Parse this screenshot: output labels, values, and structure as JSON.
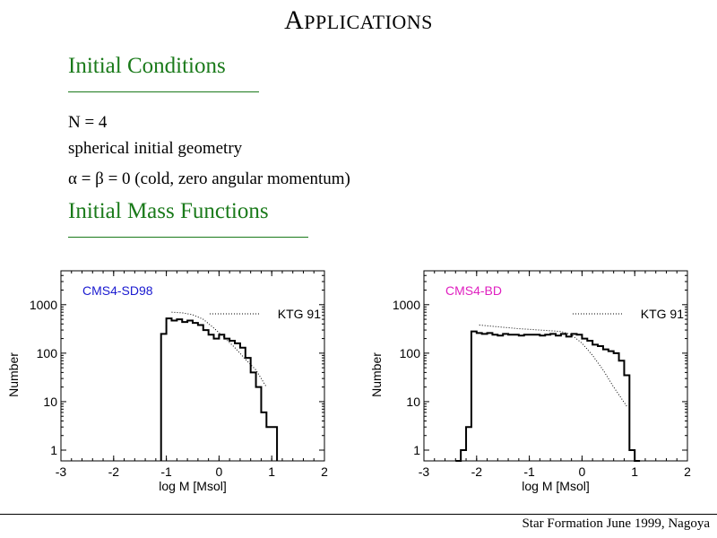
{
  "slide": {
    "title_first": "A",
    "title_rest": "PPLICATIONS",
    "section1": "Initial Conditions",
    "line1": "N = 4",
    "line2": "spherical initial geometry",
    "line3": "α = β = 0 (cold, zero angular momentum)",
    "section2": "Initial Mass Functions",
    "footer": "Star Formation June 1999, Nagoya"
  },
  "chart_data": [
    {
      "type": "line",
      "title": "CMS4-SD98",
      "title_color": "#1a1ad0",
      "xlabel": "log M [Msol]",
      "ylabel": "Number",
      "xlim": [
        -3,
        2
      ],
      "ylim": [
        0.6,
        5000
      ],
      "yscale": "log",
      "xticks": [
        -3,
        -2,
        -1,
        0,
        1,
        2
      ],
      "xtick_labels": [
        "-3",
        "-2",
        "-1",
        "0",
        "1",
        "2"
      ],
      "yticks": [
        1,
        10,
        100,
        1000
      ],
      "ytick_labels": [
        "1",
        "10",
        "100",
        "1000"
      ],
      "legend": "KTG 91",
      "legend_position": "top-right",
      "series": [
        {
          "style": "histogram",
          "x": [
            -1.05,
            -0.95,
            -0.85,
            -0.75,
            -0.65,
            -0.55,
            -0.45,
            -0.35,
            -0.25,
            -0.15,
            -0.05,
            0.05,
            0.15,
            0.25,
            0.35,
            0.45,
            0.55,
            0.65,
            0.75,
            0.85,
            0.95,
            1.05
          ],
          "y": [
            250,
            520,
            470,
            500,
            440,
            470,
            420,
            380,
            300,
            240,
            200,
            240,
            200,
            180,
            160,
            130,
            80,
            40,
            20,
            6,
            3,
            3
          ]
        },
        {
          "name": "KTG 91",
          "style": "dotted",
          "x": [
            -0.9,
            -0.7,
            -0.5,
            -0.3,
            -0.1,
            0.1,
            0.3,
            0.5,
            0.7,
            0.9
          ],
          "y": [
            700,
            680,
            620,
            500,
            330,
            210,
            130,
            75,
            45,
            20
          ]
        }
      ]
    },
    {
      "type": "line",
      "title": "CMS4-BD",
      "title_color": "#e020c0",
      "xlabel": "log M [Msol]",
      "ylabel": "Number",
      "xlim": [
        -3,
        2
      ],
      "ylim": [
        0.6,
        5000
      ],
      "yscale": "log",
      "xticks": [
        -3,
        -2,
        -1,
        0,
        1,
        2
      ],
      "xtick_labels": [
        "-3",
        "-2",
        "-1",
        "0",
        "1",
        "2"
      ],
      "yticks": [
        1,
        10,
        100,
        1000
      ],
      "ytick_labels": [
        "1",
        "10",
        "100",
        "1000"
      ],
      "legend": "KTG 91",
      "legend_position": "top-right",
      "series": [
        {
          "style": "histogram",
          "x": [
            -2.35,
            -2.25,
            -2.15,
            -2.05,
            -1.95,
            -1.85,
            -1.75,
            -1.65,
            -1.55,
            -1.45,
            -1.35,
            -1.25,
            -1.15,
            -1.05,
            -0.95,
            -0.85,
            -0.75,
            -0.65,
            -0.55,
            -0.45,
            -0.35,
            -0.25,
            -0.15,
            -0.05,
            0.05,
            0.15,
            0.25,
            0.35,
            0.45,
            0.55,
            0.65,
            0.75,
            0.85,
            0.95,
            1.05
          ],
          "y": [
            0.6,
            1,
            3,
            280,
            260,
            250,
            260,
            240,
            230,
            250,
            240,
            240,
            230,
            240,
            240,
            240,
            230,
            240,
            250,
            230,
            250,
            220,
            250,
            240,
            200,
            180,
            150,
            140,
            120,
            110,
            100,
            70,
            35,
            1,
            0.6
          ]
        },
        {
          "name": "KTG 91",
          "style": "dotted",
          "x": [
            -1.95,
            -1.6,
            -1.2,
            -0.8,
            -0.4,
            -0.2,
            0.0,
            0.2,
            0.4,
            0.6,
            0.85
          ],
          "y": [
            380,
            350,
            320,
            300,
            280,
            240,
            160,
            90,
            45,
            20,
            8
          ]
        }
      ]
    }
  ]
}
